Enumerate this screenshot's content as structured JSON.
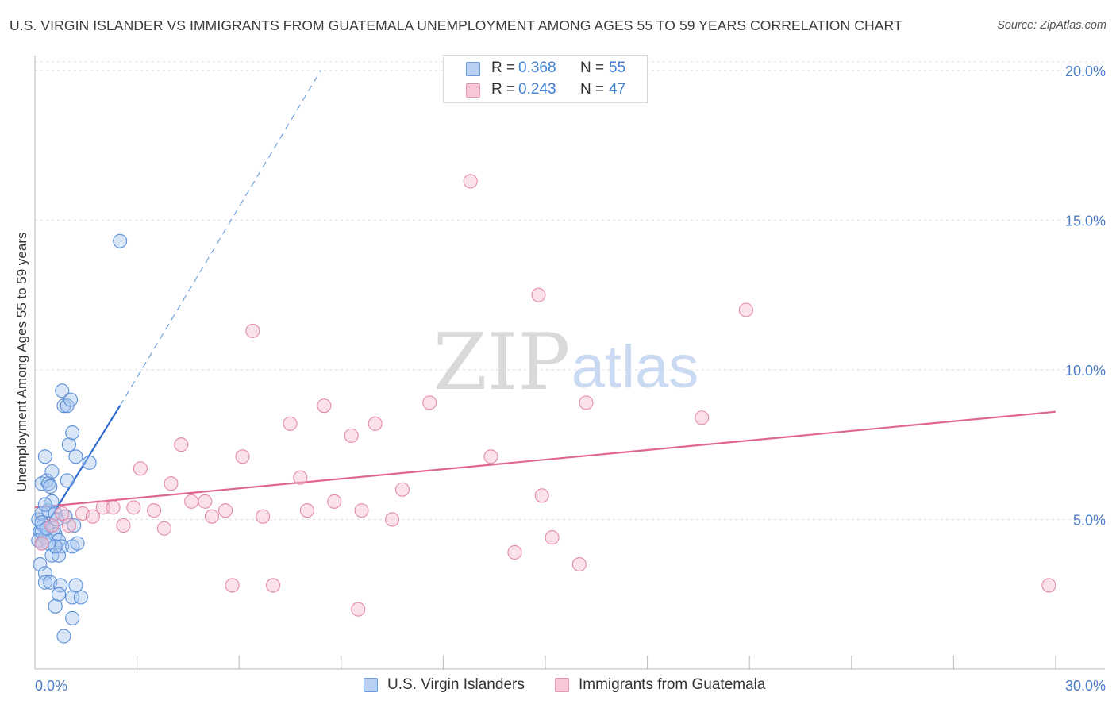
{
  "title": "U.S. VIRGIN ISLANDER VS IMMIGRANTS FROM GUATEMALA UNEMPLOYMENT AMONG AGES 55 TO 59 YEARS CORRELATION CHART",
  "source": "Source: ZipAtlas.com",
  "watermark": {
    "zip": "ZIP",
    "atlas": "atlas"
  },
  "colors": {
    "blue_fill": "#a9c8f0",
    "blue_stroke": "#5b8fd9",
    "blue_line": "#2e6ad1",
    "pink_fill": "#f6bccd",
    "pink_stroke": "#e48aa7",
    "pink_line": "#e0668f",
    "axis_text": "#4a7cc9",
    "grid": "#dcdcdc"
  },
  "legend_top": [
    {
      "r_label": "R = ",
      "r_value": "0.368",
      "n_label": "N = ",
      "n_value": "55"
    },
    {
      "r_label": "R = ",
      "r_value": "0.243",
      "n_label": "N = ",
      "n_value": "47"
    }
  ],
  "legend_bottom": [
    "U.S. Virgin Islanders",
    "Immigrants from Guatemala"
  ],
  "chart_data": {
    "type": "scatter",
    "title": "U.S. VIRGIN ISLANDER VS IMMIGRANTS FROM GUATEMALA UNEMPLOYMENT AMONG AGES 55 TO 59 YEARS CORRELATION CHART",
    "xlabel": "",
    "ylabel": "Unemployment Among Ages 55 to 59 years",
    "xlim": [
      0,
      30
    ],
    "ylim": [
      0,
      20.5
    ],
    "x_tick_labels": [
      "0.0%",
      "30.0%"
    ],
    "x_ticks": [
      0,
      3,
      6,
      9,
      12,
      15,
      18,
      21,
      24,
      27,
      30
    ],
    "y_ticks": [
      5,
      10,
      15,
      20
    ],
    "y_tick_labels": [
      "5.0%",
      "10.0%",
      "15.0%",
      "20.0%"
    ],
    "grid": true,
    "series": [
      {
        "name": "U.S. Virgin Islanders",
        "R": 0.368,
        "N": 55,
        "trend": {
          "x": [
            0.0,
            2.5
          ],
          "y": [
            4.2,
            8.8
          ],
          "extend_to_x": 8.4,
          "extend_to_y": 20.0
        },
        "points": [
          [
            0.1,
            5.0
          ],
          [
            0.15,
            4.6
          ],
          [
            0.2,
            5.2
          ],
          [
            0.1,
            4.3
          ],
          [
            0.25,
            4.8
          ],
          [
            0.3,
            4.4
          ],
          [
            0.2,
            6.2
          ],
          [
            0.35,
            6.3
          ],
          [
            0.3,
            7.1
          ],
          [
            0.4,
            6.2
          ],
          [
            0.45,
            6.1
          ],
          [
            0.5,
            6.6
          ],
          [
            0.4,
            5.3
          ],
          [
            0.5,
            5.6
          ],
          [
            0.6,
            5.2
          ],
          [
            0.55,
            4.7
          ],
          [
            0.6,
            4.5
          ],
          [
            0.7,
            4.3
          ],
          [
            0.8,
            4.1
          ],
          [
            0.9,
            5.1
          ],
          [
            0.8,
            9.3
          ],
          [
            0.85,
            8.8
          ],
          [
            0.95,
            8.8
          ],
          [
            1.05,
            9.0
          ],
          [
            0.95,
            6.3
          ],
          [
            1.0,
            7.5
          ],
          [
            1.2,
            7.1
          ],
          [
            1.6,
            6.9
          ],
          [
            1.1,
            4.1
          ],
          [
            1.25,
            4.2
          ],
          [
            1.1,
            7.9
          ],
          [
            0.15,
            3.5
          ],
          [
            0.3,
            3.2
          ],
          [
            0.3,
            2.9
          ],
          [
            0.45,
            2.9
          ],
          [
            0.5,
            3.8
          ],
          [
            0.7,
            3.8
          ],
          [
            0.6,
            2.1
          ],
          [
            0.75,
            2.8
          ],
          [
            0.7,
            2.5
          ],
          [
            1.1,
            2.4
          ],
          [
            1.35,
            2.4
          ],
          [
            1.1,
            1.7
          ],
          [
            0.85,
            1.1
          ],
          [
            1.2,
            2.8
          ],
          [
            0.6,
            4.1
          ],
          [
            2.5,
            14.3
          ],
          [
            0.2,
            4.6
          ],
          [
            0.4,
            4.2
          ],
          [
            0.3,
            5.5
          ],
          [
            0.2,
            4.9
          ],
          [
            0.65,
            5.0
          ],
          [
            0.2,
            4.2
          ],
          [
            0.35,
            4.7
          ],
          [
            1.15,
            4.8
          ]
        ]
      },
      {
        "name": "Immigrants from Guatemala",
        "R": 0.243,
        "N": 47,
        "trend": {
          "x": [
            0.0,
            30.0
          ],
          "y": [
            5.4,
            8.6
          ]
        },
        "points": [
          [
            0.2,
            4.2
          ],
          [
            0.5,
            4.8
          ],
          [
            0.8,
            5.2
          ],
          [
            1.0,
            4.8
          ],
          [
            1.4,
            5.2
          ],
          [
            1.7,
            5.1
          ],
          [
            2.0,
            5.4
          ],
          [
            2.3,
            5.4
          ],
          [
            2.6,
            4.8
          ],
          [
            2.9,
            5.4
          ],
          [
            3.1,
            6.7
          ],
          [
            3.5,
            5.3
          ],
          [
            3.8,
            4.7
          ],
          [
            4.0,
            6.2
          ],
          [
            4.3,
            7.5
          ],
          [
            4.6,
            5.6
          ],
          [
            5.0,
            5.6
          ],
          [
            5.2,
            5.1
          ],
          [
            5.6,
            5.3
          ],
          [
            5.8,
            2.8
          ],
          [
            6.1,
            7.1
          ],
          [
            6.4,
            11.3
          ],
          [
            6.7,
            5.1
          ],
          [
            7.0,
            2.8
          ],
          [
            7.5,
            8.2
          ],
          [
            7.8,
            6.4
          ],
          [
            8.0,
            5.3
          ],
          [
            8.5,
            8.8
          ],
          [
            8.8,
            5.6
          ],
          [
            9.3,
            7.8
          ],
          [
            9.5,
            2.0
          ],
          [
            9.6,
            5.3
          ],
          [
            10.0,
            8.2
          ],
          [
            10.5,
            5.0
          ],
          [
            10.8,
            6.0
          ],
          [
            11.6,
            8.9
          ],
          [
            12.8,
            16.3
          ],
          [
            13.4,
            7.1
          ],
          [
            14.1,
            3.9
          ],
          [
            14.8,
            12.5
          ],
          [
            14.9,
            5.8
          ],
          [
            15.2,
            4.4
          ],
          [
            16.0,
            3.5
          ],
          [
            16.2,
            8.9
          ],
          [
            19.6,
            8.4
          ],
          [
            20.9,
            12.0
          ],
          [
            29.8,
            2.8
          ]
        ]
      }
    ]
  }
}
